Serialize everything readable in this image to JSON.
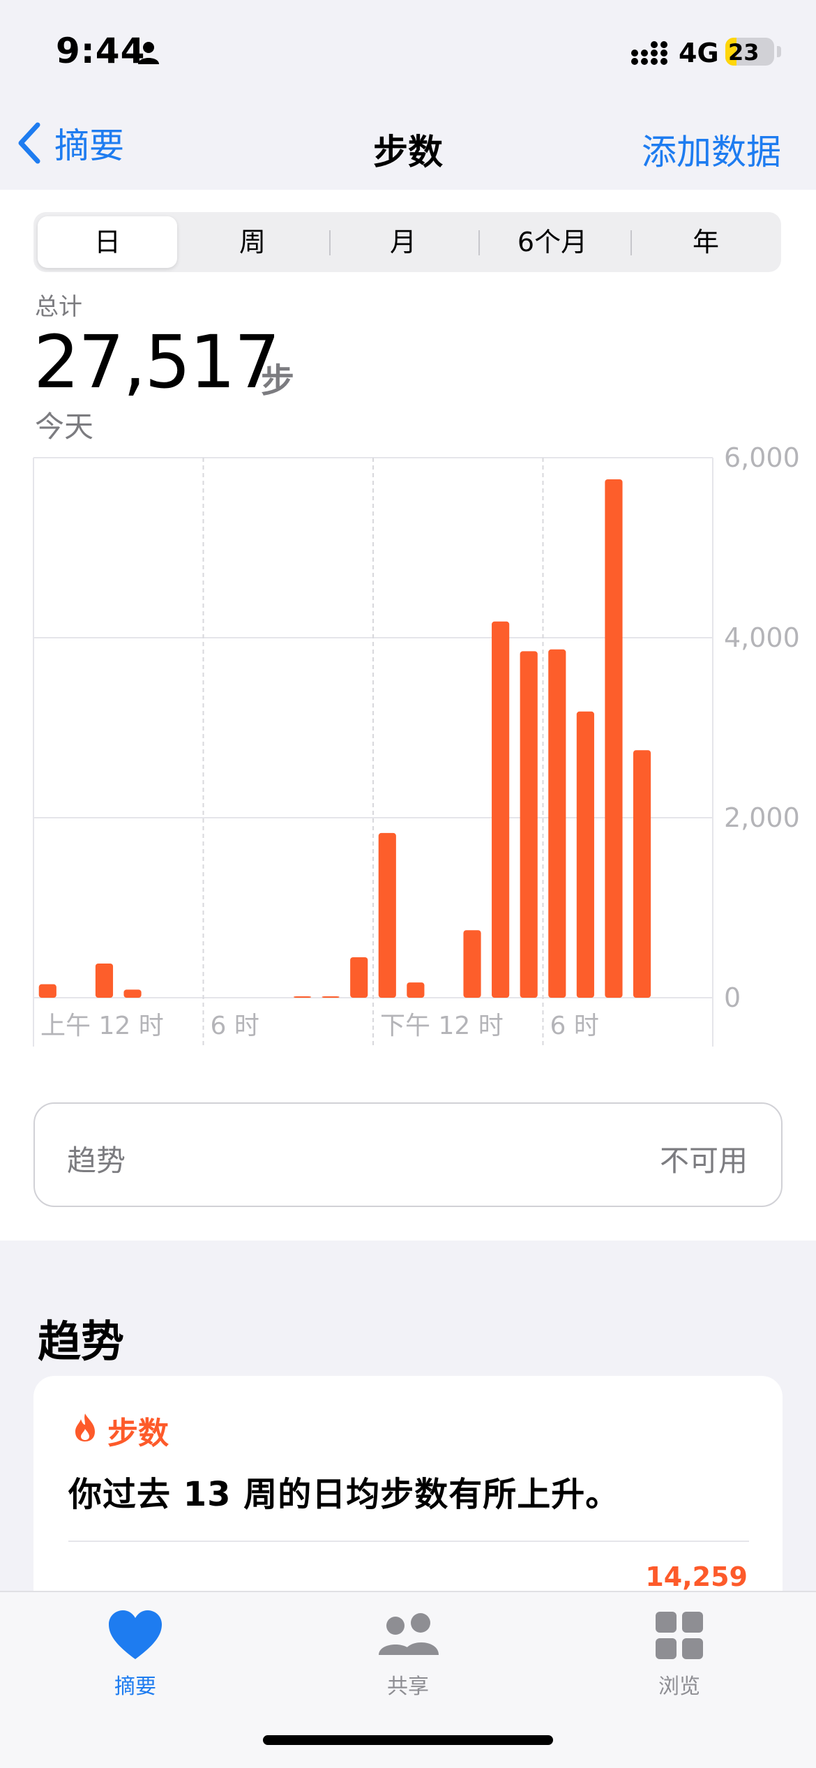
{
  "status_bar": {
    "time": "9:44",
    "network": "4G",
    "battery": "23",
    "battery_level": 0.23
  },
  "nav": {
    "back_label": "摘要",
    "title": "步数",
    "action_label": "添加数据"
  },
  "segments": [
    "日",
    "周",
    "月",
    "6个月",
    "年"
  ],
  "summary": {
    "label": "总计",
    "value": "27,517",
    "unit": "步",
    "date": "今天"
  },
  "chart_data": {
    "type": "bar",
    "y_ticks": [
      "6,000",
      "4,000",
      "2,000",
      "0"
    ],
    "ylim": [
      0,
      6000
    ],
    "x_tick_labels": [
      "上午 12 时",
      "6 时",
      "下午 12 时",
      "6 时"
    ],
    "x_hours": [
      0,
      1,
      2,
      3,
      4,
      5,
      6,
      7,
      8,
      9,
      10,
      11,
      12,
      13,
      14,
      15,
      16,
      17,
      18,
      19,
      20,
      21,
      22,
      23
    ],
    "values": [
      150,
      0,
      380,
      90,
      0,
      0,
      0,
      0,
      0,
      10,
      10,
      450,
      1830,
      170,
      0,
      750,
      4180,
      3850,
      3870,
      3180,
      5760,
      2750,
      0,
      0
    ],
    "bar_color": "#fd5e2b",
    "grid": true
  },
  "trend_row": {
    "label": "趋势",
    "value": "不可用"
  },
  "trends": {
    "title": "趋势",
    "card_tag": "步数",
    "card_text": "你过去 13 周的日均步数有所上升。",
    "value": "14,259"
  },
  "tabs": [
    {
      "label": "摘要",
      "icon": "heart-icon"
    },
    {
      "label": "共享",
      "icon": "people-icon"
    },
    {
      "label": "浏览",
      "icon": "grid-icon"
    }
  ],
  "colors": {
    "accent": "#1e7cf0",
    "steps": "#fd5a2a"
  }
}
